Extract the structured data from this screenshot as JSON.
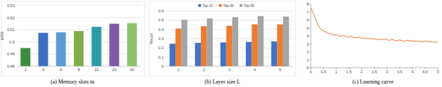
{
  "chart_data": [
    {
      "type": "bar",
      "title": "(a) Memory slots m",
      "y_label": "MRR",
      "categories": [
        "2",
        "4",
        "6",
        "8",
        "10",
        "20",
        "30"
      ],
      "values": [
        0.495,
        0.5075,
        0.508,
        0.509,
        0.5125,
        0.515,
        0.5155
      ],
      "colors": [
        "#3d8b3d",
        "#3b6fc4",
        "#5b9bd5",
        "#7fae4a",
        "#2e9ba8",
        "#7b5aa6",
        "#8cc36a"
      ],
      "ylim": [
        0.48,
        0.53
      ],
      "yticks": [
        0.48,
        0.49,
        0.5,
        0.51,
        0.52,
        0.53
      ],
      "grid": true
    },
    {
      "type": "bar",
      "title": "(b) Layer size L",
      "y_label": "Recall",
      "categories": [
        "1",
        "2",
        "3",
        "4",
        "5"
      ],
      "series": [
        {
          "name": "Top-10",
          "color": "#4472c4",
          "values": [
            0.245,
            0.255,
            0.26,
            0.265,
            0.27
          ]
        },
        {
          "name": "Top-30",
          "color": "#ed7d31",
          "values": [
            0.41,
            0.435,
            0.44,
            0.455,
            0.455
          ]
        },
        {
          "name": "Top-50",
          "color": "#a5a5a5",
          "values": [
            0.505,
            0.52,
            0.535,
            0.545,
            0.54
          ]
        }
      ],
      "ylim": [
        0,
        0.6
      ],
      "yticks": [
        0,
        0.1,
        0.2,
        0.3,
        0.4,
        0.5,
        0.6
      ],
      "grid": true,
      "legend": "top"
    },
    {
      "type": "line",
      "title": "(c) Learning curve",
      "color": "#e8742a",
      "x": [
        0,
        0.1,
        0.2,
        0.3,
        0.4,
        0.5,
        0.6,
        0.7,
        0.8,
        0.9,
        1,
        1.1,
        1.2,
        1.3,
        1.4,
        1.5,
        1.6,
        1.7,
        1.8,
        1.9,
        2,
        2.1,
        2.2,
        2.3,
        2.4,
        2.5,
        2.6,
        2.7,
        2.8,
        2.9,
        3,
        3.1,
        3.2,
        3.3,
        3.4,
        3.5,
        3.6,
        3.7,
        3.8,
        3.9,
        4,
        4.1,
        4.2,
        4.3,
        4.4,
        4.5,
        4.6,
        4.7,
        4.8,
        4.9,
        5
      ],
      "values": [
        7.5,
        6.9,
        6.0,
        5.3,
        4.8,
        4.6,
        4.5,
        4.3,
        4.25,
        4.1,
        4.15,
        4.0,
        3.95,
        4.05,
        3.9,
        3.85,
        3.95,
        3.8,
        3.75,
        3.85,
        3.7,
        3.75,
        3.65,
        3.7,
        3.6,
        3.65,
        3.55,
        3.6,
        3.5,
        3.6,
        3.5,
        3.45,
        3.55,
        3.45,
        3.4,
        3.5,
        3.4,
        3.35,
        3.45,
        3.35,
        3.4,
        3.3,
        3.35,
        3.3,
        3.25,
        3.35,
        3.25,
        3.3,
        3.2,
        3.25,
        3.2
      ],
      "xlim": [
        0,
        5
      ],
      "xticks": [
        0,
        0.5,
        1,
        1.5,
        2,
        2.5,
        3,
        3.5,
        4,
        4.5,
        5
      ],
      "ylim": [
        0,
        8
      ],
      "yticks": [
        0,
        1,
        2,
        3,
        4,
        5,
        6,
        7,
        8
      ]
    }
  ]
}
